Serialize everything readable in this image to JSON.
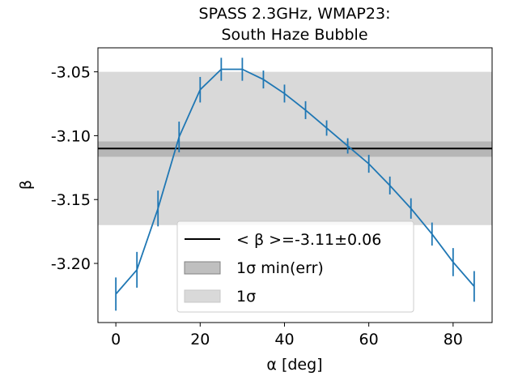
{
  "chart_data": {
    "type": "line",
    "title_line1": "SPASS 2.3GHz, WMAP23:",
    "title_line2": "South Haze Bubble",
    "xlabel": "α [deg]",
    "ylabel": "β",
    "xlim": [
      -4.25,
      89.25
    ],
    "ylim": [
      -3.2463,
      -3.0312
    ],
    "xticks": [
      0,
      20,
      40,
      60,
      80
    ],
    "xtick_labels": [
      "0",
      "20",
      "40",
      "60",
      "80"
    ],
    "yticks": [
      -3.05,
      -3.1,
      -3.15,
      -3.2
    ],
    "ytick_labels": [
      "-3.05",
      "-3.10",
      "-3.15",
      "-3.20"
    ],
    "series": [
      {
        "color": "#1f77b4",
        "x": [
          0,
          5,
          10,
          15,
          20,
          25,
          30,
          35,
          40,
          45,
          50,
          55,
          60,
          65,
          70,
          75,
          80,
          85
        ],
        "y": [
          -3.224,
          -3.205,
          -3.157,
          -3.101,
          -3.064,
          -3.048,
          -3.048,
          -3.056,
          -3.067,
          -3.08,
          -3.094,
          -3.108,
          -3.122,
          -3.139,
          -3.157,
          -3.177,
          -3.199,
          -3.218
        ],
        "yerr": [
          0.013,
          0.014,
          0.014,
          0.012,
          0.01,
          0.009,
          0.009,
          0.007,
          0.007,
          0.007,
          0.006,
          0.006,
          0.007,
          0.007,
          0.008,
          0.009,
          0.011,
          0.012
        ]
      }
    ],
    "mean_line": {
      "y": -3.11,
      "color": "#000000"
    },
    "band_min_err": {
      "y0": -3.1165,
      "y1": -3.1045,
      "color": "#a9a9a9"
    },
    "band_sigma": {
      "y0": -3.17,
      "y1": -3.05,
      "color": "#d9d9d9"
    },
    "legend": {
      "position": "lower center",
      "items": [
        {
          "label": "< β >=-3.11±0.06",
          "kind": "line"
        },
        {
          "label": "1σ min(err)",
          "kind": "patch-dark"
        },
        {
          "label": "1σ",
          "kind": "patch-light"
        }
      ]
    },
    "grid": false
  }
}
